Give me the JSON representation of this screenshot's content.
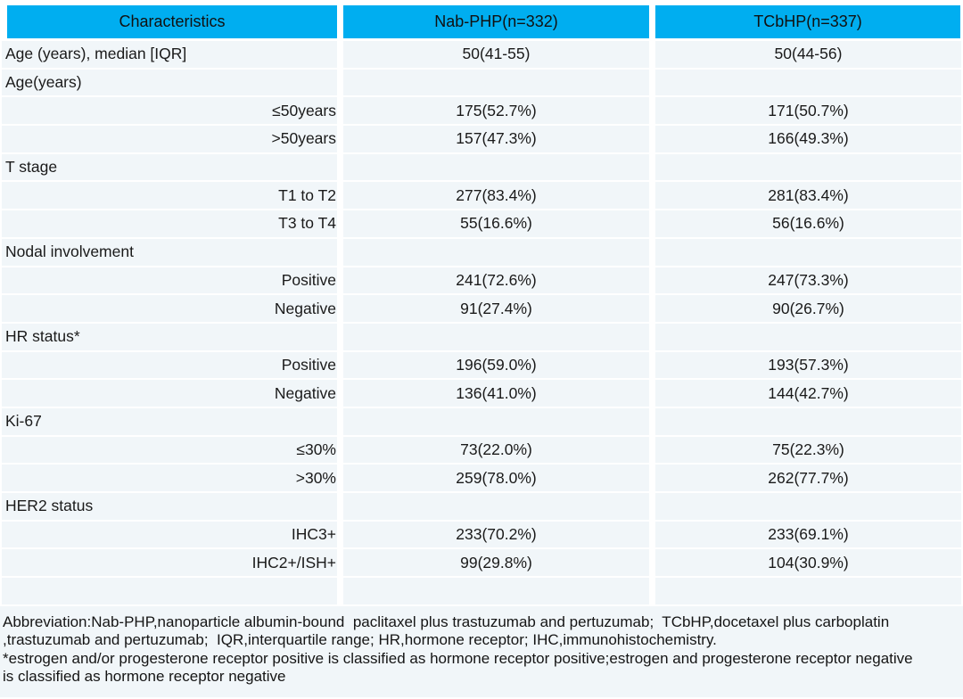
{
  "table": {
    "columns": [
      "Characteristics",
      "Nab-PHP(n=332)",
      "TCbHP(n=337)"
    ],
    "rows": [
      {
        "label": "Age (years), median [IQR]",
        "nabphp": "50(41-55)",
        "tcbhp": "50(44-56)"
      },
      {
        "label": "Age(years)",
        "nabphp": "",
        "tcbhp": ""
      },
      {
        "label": "≤50years",
        "nabphp": "175(52.7%)",
        "tcbhp": "171(50.7%)"
      },
      {
        "label": ">50years",
        "nabphp": "157(47.3%)",
        "tcbhp": "166(49.3%)"
      },
      {
        "label": "T stage",
        "nabphp": "",
        "tcbhp": ""
      },
      {
        "label": "T1 to T2",
        "nabphp": "277(83.4%)",
        "tcbhp": "281(83.4%)"
      },
      {
        "label": "T3 to T4",
        "nabphp": "55(16.6%)",
        "tcbhp": "56(16.6%)"
      },
      {
        "label": "Nodal involvement",
        "nabphp": "",
        "tcbhp": ""
      },
      {
        "label": "Positive",
        "nabphp": "241(72.6%)",
        "tcbhp": "247(73.3%)"
      },
      {
        "label": "Negative",
        "nabphp": "91(27.4%)",
        "tcbhp": "90(26.7%)"
      },
      {
        "label": "HR status*",
        "nabphp": "",
        "tcbhp": ""
      },
      {
        "label": "Positive",
        "nabphp": "196(59.0%)",
        "tcbhp": "193(57.3%)"
      },
      {
        "label": "Negative",
        "nabphp": "136(41.0%)",
        "tcbhp": "144(42.7%)"
      },
      {
        "label": "Ki-67",
        "nabphp": "",
        "tcbhp": ""
      },
      {
        "label": "≤30%",
        "nabphp": "73(22.0%)",
        "tcbhp": "75(22.3%)"
      },
      {
        "label": ">30%",
        "nabphp": "259(78.0%)",
        "tcbhp": "262(77.7%)"
      },
      {
        "label": "HER2 status",
        "nabphp": "",
        "tcbhp": ""
      },
      {
        "label": "IHC3+",
        "nabphp": "233(70.2%)",
        "tcbhp": "233(69.1%)"
      },
      {
        "label": "IHC2+/ISH+",
        "nabphp": "99(29.8%)",
        "tcbhp": "104(30.9%)"
      },
      {
        "label": "",
        "nabphp": "",
        "tcbhp": ""
      }
    ]
  },
  "footer": {
    "lines": [
      "Abbreviation:Nab-PHP,nanoparticle albumin-bound  paclitaxel plus trastuzumab and pertuzumab;  TCbHP,docetaxel plus carboplatin",
      ",trastuzumab and pertuzumab;  IQR,interquartile range; HR,hormone receptor; IHC,immunohistochemistry.",
      "*estrogen and/or progesterone receptor positive is classified as hormone receptor positive;estrogen and progesterone receptor negative",
      "is classified as hormone receptor negative"
    ]
  },
  "colors": {
    "header_bg": "#00AEF0",
    "row_bg": "#F1F6F9",
    "text": "#1A1A1A"
  }
}
